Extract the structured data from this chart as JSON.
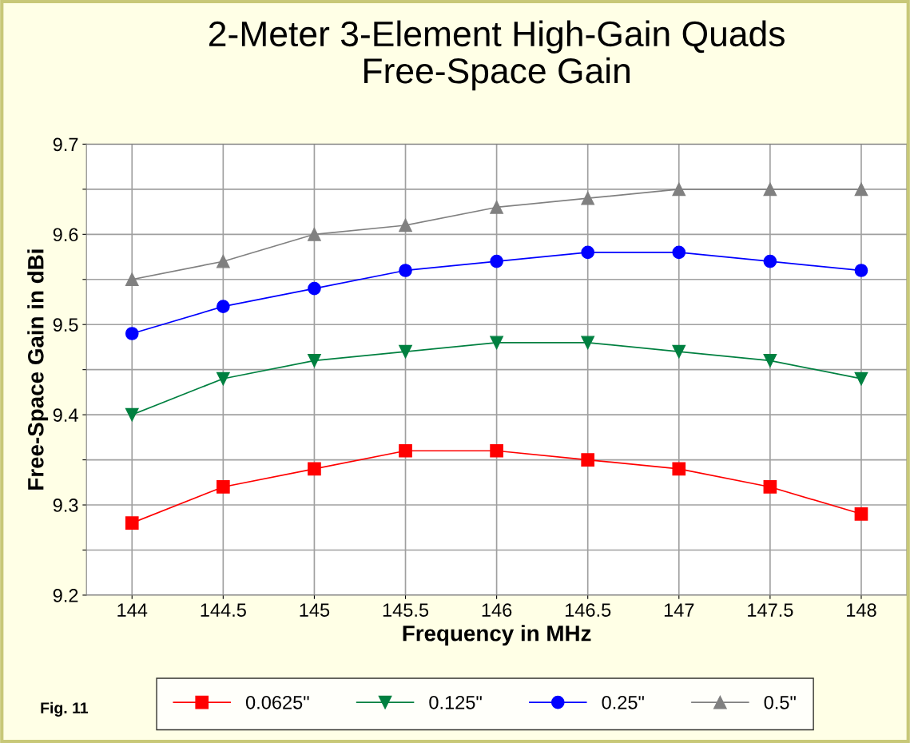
{
  "chart_data": {
    "type": "line",
    "title": "2-Meter 3-Element High-Gain Quads\nFree-Space Gain",
    "xlabel": "Frequency in MHz",
    "ylabel": "Free-Space Gain in dBi",
    "x": [
      144,
      144.5,
      145,
      145.5,
      146,
      146.5,
      147,
      147.5,
      148
    ],
    "series": [
      {
        "name": "0.0625\"",
        "color": "#ff0000",
        "marker": "square",
        "values": [
          9.28,
          9.32,
          9.34,
          9.36,
          9.36,
          9.35,
          9.34,
          9.32,
          9.29
        ]
      },
      {
        "name": "0.125\"",
        "color": "#008040",
        "marker": "triangle_down",
        "values": [
          9.4,
          9.44,
          9.46,
          9.47,
          9.48,
          9.48,
          9.47,
          9.46,
          9.44
        ]
      },
      {
        "name": "0.25\"",
        "color": "#0000ff",
        "marker": "circle",
        "values": [
          9.49,
          9.52,
          9.54,
          9.56,
          9.57,
          9.58,
          9.58,
          9.57,
          9.56
        ]
      },
      {
        "name": "0.5\"",
        "color": "#808080",
        "marker": "triangle",
        "values": [
          9.55,
          9.57,
          9.6,
          9.61,
          9.63,
          9.64,
          9.65,
          9.65,
          9.65
        ]
      }
    ],
    "xlim": [
      143.75,
      148.25
    ],
    "xticks": [
      144,
      144.5,
      145,
      145.5,
      146,
      146.5,
      147,
      147.5,
      148
    ],
    "ylim": [
      9.2,
      9.7
    ],
    "yticks": [
      9.2,
      {
        "value": 9.25,
        "label": null
      },
      9.3,
      {
        "value": 9.35,
        "label": null
      },
      9.4,
      {
        "value": 9.45,
        "label": null
      },
      9.5,
      {
        "value": 9.55,
        "label": null
      },
      9.6,
      {
        "value": 9.65,
        "label": null
      },
      9.7
    ],
    "grid": true,
    "legend": "bottom",
    "line_style": "solid",
    "annotations": [
      "Fig. 11"
    ]
  }
}
